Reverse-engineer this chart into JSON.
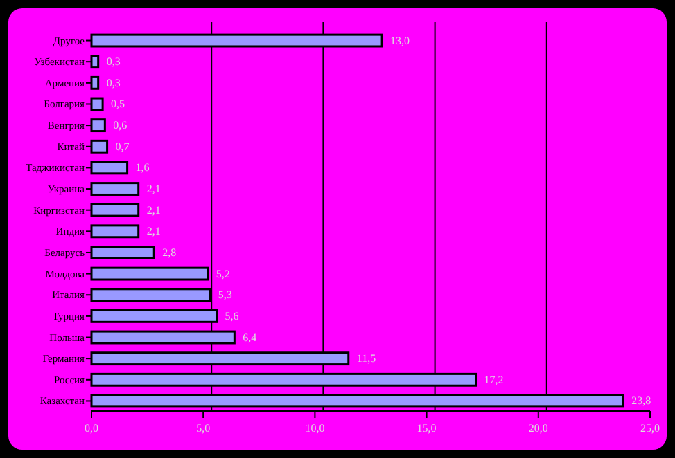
{
  "chart_data": {
    "type": "bar",
    "orientation": "horizontal",
    "categories": [
      "Другое",
      "Узбекистан",
      "Армения",
      "Болгария",
      "Венгрия",
      "Китай",
      "Таджикистан",
      "Украина",
      "Киргизстан",
      "Индия",
      "Беларусь",
      "Молдова",
      "Италия",
      "Турция",
      "Польша",
      "Германия",
      "Россия",
      "Казахстан"
    ],
    "values": [
      13.0,
      0.3,
      0.3,
      0.5,
      0.6,
      0.7,
      1.6,
      2.1,
      2.1,
      2.1,
      2.8,
      5.2,
      5.3,
      5.6,
      6.4,
      11.5,
      17.2,
      23.8
    ],
    "value_labels": [
      "13,0",
      "0,3",
      "0,3",
      "0,5",
      "0,6",
      "0,7",
      "1,6",
      "2,1",
      "2,1",
      "2,1",
      "2,8",
      "5,2",
      "5,3",
      "5,6",
      "6,4",
      "11,5",
      "17,2",
      "23,8"
    ],
    "color": "#9999ff",
    "xlim": [
      0,
      25
    ],
    "xticks": [
      {
        "value": 0,
        "label": "0,0"
      },
      {
        "value": 5,
        "label": "5,0"
      },
      {
        "value": 10,
        "label": "10,0"
      },
      {
        "value": 15,
        "label": "15,0"
      },
      {
        "value": 20,
        "label": "20,0"
      },
      {
        "value": 25,
        "label": "25,0"
      }
    ],
    "grid": "x"
  }
}
